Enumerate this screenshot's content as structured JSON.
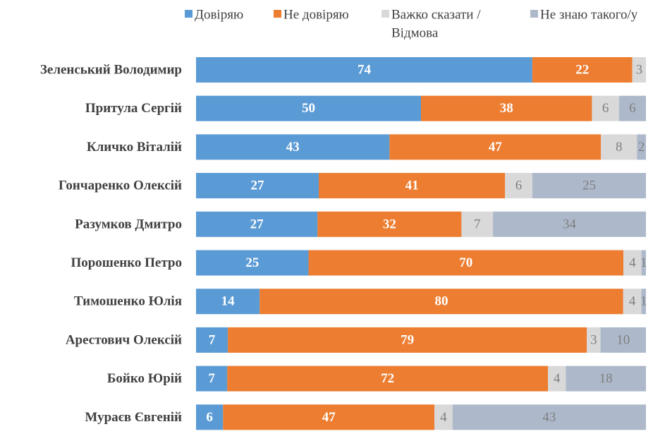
{
  "chart_data": {
    "type": "bar",
    "orientation": "horizontal",
    "stacked": true,
    "percent_stacked": true,
    "legend_position": "top",
    "grid": false,
    "title": "",
    "xlabel": "",
    "ylabel": "",
    "categories": [
      "Зеленський Володимир",
      "Притула Сергій",
      "Кличко Віталій",
      "Гончаренко Олексій",
      "Разумков Дмитро",
      "Порошенко Петро",
      "Тимошенко Юлія",
      "Арестович Олексій",
      "Бойко Юрій",
      "Мураєв Євгеній"
    ],
    "series": [
      {
        "name": "Довіряю",
        "color": "#5b9bd5",
        "label_style": "light",
        "values": [
          74,
          50,
          43,
          27,
          27,
          25,
          14,
          7,
          7,
          6
        ]
      },
      {
        "name": "Не довіряю",
        "color": "#ed7d31",
        "label_style": "light",
        "values": [
          22,
          38,
          47,
          41,
          32,
          70,
          80,
          79,
          72,
          47
        ]
      },
      {
        "name": "Важко сказати / Відмова",
        "legend_lines": [
          "Важко сказати /",
          "Відмова"
        ],
        "color": "#d9d9d9",
        "label_style": "dark",
        "values": [
          3,
          6,
          8,
          6,
          7,
          4,
          4,
          3,
          4,
          4
        ]
      },
      {
        "name": "Не знаю такого/у",
        "color": "#adb9ca",
        "label_style": "dark",
        "values": [
          0,
          6,
          2,
          25,
          34,
          1,
          1,
          10,
          18,
          43
        ]
      }
    ]
  }
}
